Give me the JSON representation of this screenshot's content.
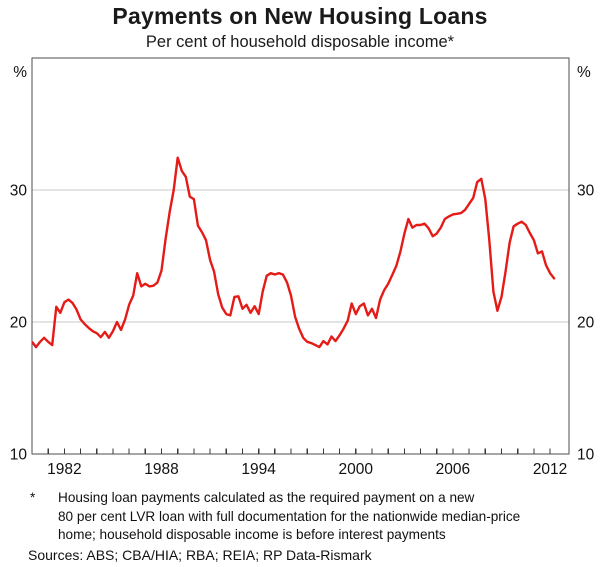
{
  "chart_data": {
    "type": "line",
    "title": "Payments on New Housing Loans",
    "subtitle": "Per cent of household disposable income*",
    "unit_label": "%",
    "ylabel": "",
    "xlabel": "",
    "ylim": [
      10,
      40
    ],
    "yticks": [
      10,
      20,
      30
    ],
    "gridlines": [
      20,
      30
    ],
    "grid": "horizontal",
    "legend_position": "none",
    "xlim": [
      1980.0,
      2013.17
    ],
    "xtick_years_range": {
      "start": 1981,
      "end": 2012,
      "step": 1
    },
    "xtick_label_years": [
      1982,
      1988,
      1994,
      2000,
      2006,
      2012
    ],
    "series": [
      {
        "name": "Payments on new housing loans",
        "color": "#e41b17",
        "frequency": "quarterly",
        "start_year": 1980.0,
        "period_years": 0.25,
        "values": [
          18.45,
          18.1,
          18.5,
          18.8,
          18.5,
          18.25,
          21.15,
          20.7,
          21.5,
          21.7,
          21.45,
          20.95,
          20.2,
          19.85,
          19.55,
          19.3,
          19.15,
          18.85,
          19.25,
          18.8,
          19.3,
          20.0,
          19.4,
          20.2,
          21.3,
          22.0,
          23.7,
          22.7,
          22.9,
          22.7,
          22.75,
          23.0,
          23.9,
          26.3,
          28.3,
          30.0,
          32.45,
          31.45,
          31.0,
          29.5,
          29.3,
          27.3,
          26.8,
          26.2,
          24.7,
          23.8,
          22.1,
          21.1,
          20.6,
          20.5,
          21.9,
          21.95,
          21.0,
          21.3,
          20.7,
          21.2,
          20.6,
          22.3,
          23.5,
          23.7,
          23.6,
          23.7,
          23.6,
          23.0,
          22.0,
          20.4,
          19.5,
          18.8,
          18.5,
          18.4,
          18.25,
          18.1,
          18.55,
          18.3,
          18.9,
          18.55,
          19.0,
          19.5,
          20.1,
          21.4,
          20.6,
          21.2,
          21.4,
          20.5,
          21.0,
          20.3,
          21.7,
          22.4,
          22.9,
          23.55,
          24.25,
          25.3,
          26.7,
          27.8,
          27.15,
          27.35,
          27.35,
          27.45,
          27.1,
          26.5,
          26.7,
          27.15,
          27.8,
          28.0,
          28.15,
          28.2,
          28.25,
          28.5,
          28.95,
          29.4,
          30.6,
          30.85,
          29.3,
          26.2,
          22.3,
          20.85,
          21.9,
          23.8,
          26.0,
          27.25,
          27.45,
          27.6,
          27.35,
          26.75,
          26.2,
          25.2,
          25.35,
          24.3,
          23.7,
          23.3
        ]
      }
    ]
  },
  "footnote": {
    "marker": "*",
    "lines": [
      "Housing loan payments calculated as the required payment on a new",
      "80 per cent LVR loan with full documentation for the nationwide median-price",
      "home; household disposable income is before interest payments"
    ]
  },
  "sources": "Sources: ABS; CBA/HIA; RBA; REIA; RP Data-Rismark"
}
